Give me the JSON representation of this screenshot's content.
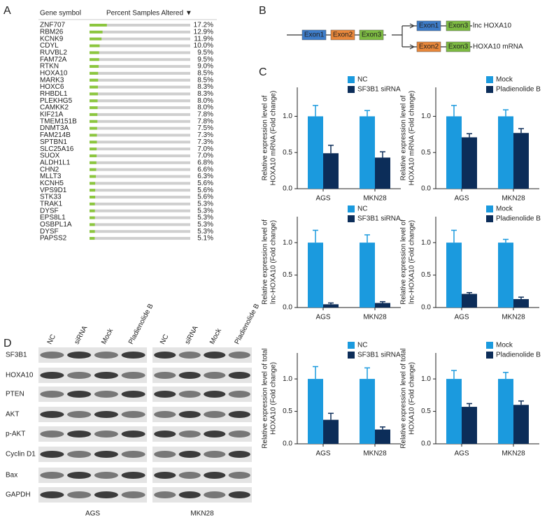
{
  "panel_letters": [
    "A",
    "B",
    "C",
    "D"
  ],
  "diagram": {
    "exons": [
      "Exon1",
      "Exon2",
      "Exon3"
    ],
    "exon_colors": [
      "#3d7cc9",
      "#e8873a",
      "#7dbb42"
    ],
    "transcripts": [
      {
        "label": "lnc HOXA10"
      },
      {
        "label": "HOXA10 mRNA"
      }
    ]
  },
  "blot": {
    "lanes": [
      "NC",
      "siRNA",
      "Mock",
      "Pladienolide B"
    ],
    "proteins": [
      "SF3B1",
      "HOXA10",
      "PTEN",
      "AKT",
      "p-AKT",
      "Cyclin D1",
      "Bax",
      "GAPDH"
    ],
    "groups": [
      "AGS",
      "MKN28"
    ]
  },
  "chart_data": [
    {
      "type": "hbar",
      "ylabel": "Gene symbol",
      "xlabel": "Percent Samples Altered ▼",
      "categories": [
        "ZNF707",
        "RBM26",
        "KCNK9",
        "CDYL",
        "RUVBL2",
        "FAM72A",
        "RTKN",
        "HOXA10",
        "MARK3",
        "HOXC6",
        "RHBDL1",
        "PLEKHG5",
        "CAMKK2",
        "KIF21A",
        "TMEM151B",
        "DNMT3A",
        "FAM214B",
        "SPTBN1",
        "SLC25A16",
        "SUOX",
        "ALDH1L1",
        "CHN2",
        "MLLT3",
        "KCNH5",
        "VPS9D1",
        "STK33",
        "TRAK1",
        "DYSF",
        "EPS8L1",
        "OSBPL1A",
        "DYSF",
        "PAPSS2"
      ],
      "values": [
        17.2,
        12.9,
        11.9,
        10.0,
        9.5,
        9.5,
        9.0,
        8.5,
        8.5,
        8.3,
        8.3,
        8.0,
        8.0,
        7.8,
        7.8,
        7.5,
        7.3,
        7.3,
        7.0,
        7.0,
        6.8,
        6.6,
        6.3,
        5.6,
        5.6,
        5.6,
        5.3,
        5.3,
        5.3,
        5.3,
        5.3,
        5.1
      ],
      "value_labels": [
        "17.2%",
        "12.9%",
        "11.9%",
        "10.0%",
        "9.5%",
        "9.5%",
        "9.0%",
        "8.5%",
        "8.5%",
        "8.3%",
        "8.3%",
        "8.0%",
        "8.0%",
        "7.8%",
        "7.8%",
        "7.5%",
        "7.3%",
        "7.3%",
        "7.0%",
        "7.0%",
        "6.8%",
        "6.6%",
        "6.3%",
        "5.6%",
        "5.6%",
        "5.6%",
        "5.3%",
        "5.3%",
        "5.3%",
        "5.3%",
        "5.3%",
        "5.1%"
      ],
      "xlim": [
        0,
        100
      ],
      "color": "#8cc63f",
      "track_color": "#cfcfcf"
    },
    {
      "type": "bar",
      "ylabel": [
        "Relative expression level of",
        "HOXA10 mRNA (Fold change)"
      ],
      "categories": [
        "AGS",
        "MKN28"
      ],
      "series": [
        {
          "name": "NC",
          "color": "#1b9ade",
          "values": [
            1.0,
            1.0
          ],
          "errors": [
            0.15,
            0.08
          ]
        },
        {
          "name": "SF3B1 siRNA",
          "color": "#0c2d59",
          "values": [
            0.49,
            0.43
          ],
          "errors": [
            0.11,
            0.08
          ]
        }
      ],
      "ylim": [
        0,
        1.4
      ],
      "yticks": [
        {
          "value": 0,
          "label": "0.0"
        },
        {
          "value": 0.5,
          "label": "0.5"
        },
        {
          "value": 1,
          "label": "1.0"
        }
      ]
    },
    {
      "type": "bar",
      "ylabel": [
        "Relative expression level of",
        "HOXA10 mRNA (Fold change)"
      ],
      "categories": [
        "AGS",
        "MKN28"
      ],
      "series": [
        {
          "name": "Mock",
          "color": "#1b9ade",
          "values": [
            1.0,
            1.0
          ],
          "errors": [
            0.15,
            0.09
          ]
        },
        {
          "name": "Pladienolide B",
          "color": "#0c2d59",
          "values": [
            0.71,
            0.77
          ],
          "errors": [
            0.05,
            0.06
          ]
        }
      ],
      "ylim": [
        0,
        1.4
      ],
      "yticks": [
        {
          "value": 0,
          "label": "0.0"
        },
        {
          "value": 0.5,
          "label": "0.5"
        },
        {
          "value": 1,
          "label": "1.0"
        }
      ]
    },
    {
      "type": "bar",
      "ylabel": [
        "Relative expression level of",
        "lnc-HOXA10 (Fold change)"
      ],
      "categories": [
        "AGS",
        "MKN28"
      ],
      "series": [
        {
          "name": "NC",
          "color": "#1b9ade",
          "values": [
            1.0,
            1.0
          ],
          "errors": [
            0.19,
            0.12
          ]
        },
        {
          "name": "SF3B1 siRNA",
          "color": "#0c2d59",
          "values": [
            0.05,
            0.07
          ],
          "errors": [
            0.02,
            0.02
          ]
        }
      ],
      "ylim": [
        0,
        1.4
      ],
      "yticks": [
        {
          "value": 0,
          "label": "0.0"
        },
        {
          "value": 0.5,
          "label": "0.5"
        },
        {
          "value": 1,
          "label": "1.0"
        }
      ]
    },
    {
      "type": "bar",
      "ylabel": [
        "Relative expression level of",
        "lnc-HOXA10 (Fold change)"
      ],
      "categories": [
        "AGS",
        "MKN28"
      ],
      "series": [
        {
          "name": "Mock",
          "color": "#1b9ade",
          "values": [
            1.0,
            1.0
          ],
          "errors": [
            0.19,
            0.05
          ]
        },
        {
          "name": "Pladienolide B",
          "color": "#0c2d59",
          "values": [
            0.21,
            0.13
          ],
          "errors": [
            0.02,
            0.03
          ]
        }
      ],
      "ylim": [
        0,
        1.4
      ],
      "yticks": [
        {
          "value": 0,
          "label": "0.0"
        },
        {
          "value": 0.5,
          "label": "0.5"
        },
        {
          "value": 1,
          "label": "1.0"
        }
      ]
    },
    {
      "type": "bar",
      "ylabel": [
        "Relative expression level of total",
        "HOXA10 (Fold change)"
      ],
      "categories": [
        "AGS",
        "MKN28"
      ],
      "series": [
        {
          "name": "NC",
          "color": "#1b9ade",
          "values": [
            1.0,
            1.0
          ],
          "errors": [
            0.19,
            0.17
          ]
        },
        {
          "name": "SF3B1 siRNA",
          "color": "#0c2d59",
          "values": [
            0.37,
            0.22
          ],
          "errors": [
            0.1,
            0.04
          ]
        }
      ],
      "ylim": [
        0,
        1.4
      ],
      "yticks": [
        {
          "value": 0,
          "label": "0.0"
        },
        {
          "value": 0.5,
          "label": "0.5"
        },
        {
          "value": 1,
          "label": "1.0"
        }
      ]
    },
    {
      "type": "bar",
      "ylabel": [
        "Relative expression level of total",
        "HOXA10 (Fold change)"
      ],
      "categories": [
        "AGS",
        "MKN28"
      ],
      "series": [
        {
          "name": "Mock",
          "color": "#1b9ade",
          "values": [
            1.0,
            1.0
          ],
          "errors": [
            0.13,
            0.1
          ]
        },
        {
          "name": "Pladienolide B",
          "color": "#0c2d59",
          "values": [
            0.57,
            0.6
          ],
          "errors": [
            0.05,
            0.06
          ]
        }
      ],
      "ylim": [
        0,
        1.4
      ],
      "yticks": [
        {
          "value": 0,
          "label": "0.0"
        },
        {
          "value": 0.5,
          "label": "0.5"
        },
        {
          "value": 1,
          "label": "1.0"
        }
      ]
    }
  ]
}
